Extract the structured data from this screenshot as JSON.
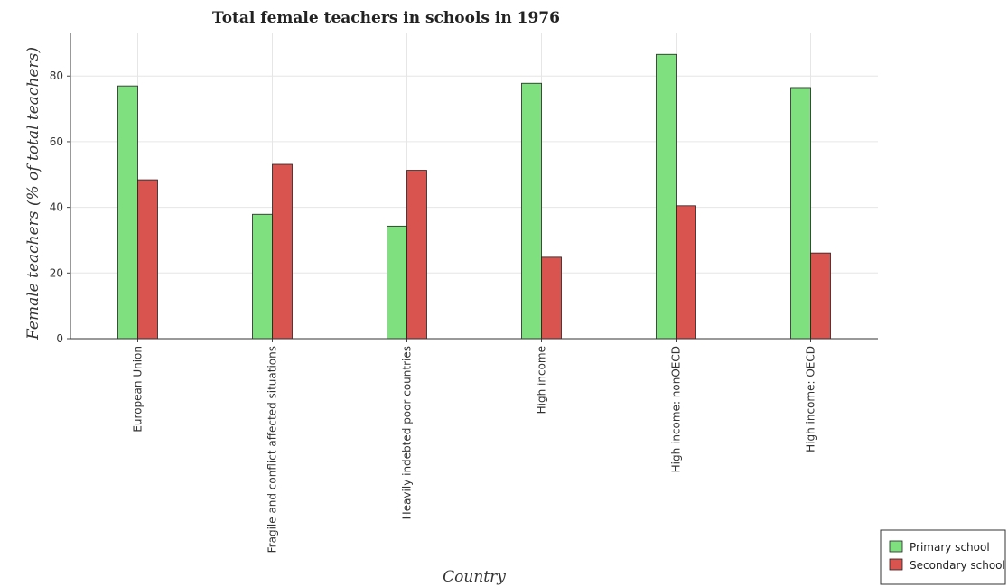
{
  "chart_data": {
    "type": "bar",
    "title": "Total female teachers in schools in 1976",
    "xlabel": "Country",
    "ylabel": "Female teachers (% of total teachers)",
    "categories": [
      "European Union",
      "Fragile and conflict affected situations",
      "Heavily indebted poor countries",
      "High income",
      "High income: nonOECD",
      "High income: OECD"
    ],
    "series": [
      {
        "name": "Primary school",
        "color": "#7ee07e",
        "values": [
          77.0,
          37.9,
          34.3,
          77.8,
          86.6,
          76.5
        ]
      },
      {
        "name": "Secondary school",
        "color": "#d9534f",
        "values": [
          48.4,
          53.1,
          51.3,
          24.8,
          40.5,
          26.1
        ]
      }
    ],
    "ylim": [
      0,
      93
    ],
    "yticks": [
      0,
      20,
      40,
      60,
      80
    ],
    "grid": true,
    "legend": "bottom-right"
  }
}
